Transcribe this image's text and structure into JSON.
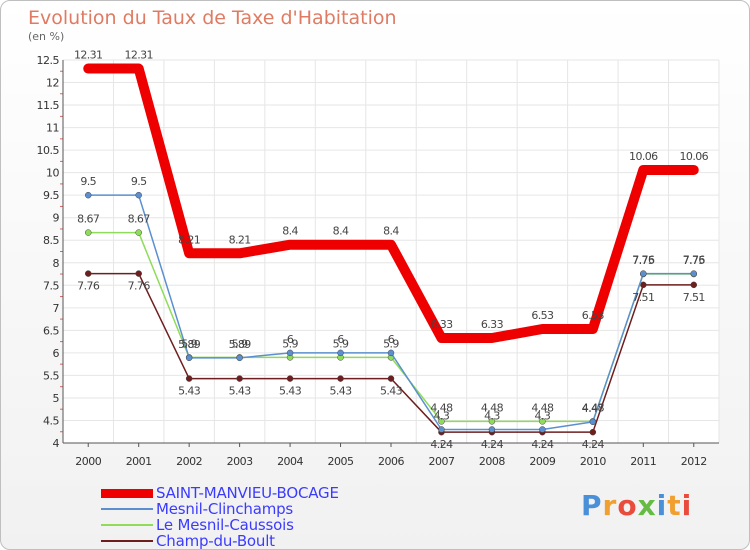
{
  "chart_data": {
    "type": "line",
    "title": "Evolution du Taux de Taxe d'Habitation",
    "ylabel": "(en %)",
    "xlabel": "",
    "ylim": [
      4,
      12.5
    ],
    "yticks": [
      "4",
      "4.5",
      "5",
      "5.5",
      "6",
      "6.5",
      "7",
      "7.5",
      "8",
      "8.5",
      "9",
      "9.5",
      "10",
      "10.5",
      "11",
      "11.5",
      "12",
      "12.5"
    ],
    "categories": [
      "2000",
      "2001",
      "2002",
      "2003",
      "2004",
      "2005",
      "2006",
      "2007",
      "2008",
      "2009",
      "2010",
      "2011",
      "2012"
    ],
    "series": [
      {
        "name": "SAINT-MANVIEU-BOCAGE",
        "color": "#ee0000",
        "values": [
          12.31,
          12.31,
          8.21,
          8.21,
          8.4,
          8.4,
          8.4,
          6.33,
          6.33,
          6.53,
          6.53,
          10.06,
          10.06
        ],
        "labels": [
          "12.31",
          "12.31",
          "8.21",
          "8.21",
          "8.4",
          "8.4",
          "8.4",
          "6.33",
          "6.33",
          "6.53",
          "6.53",
          "10.06",
          "10.06"
        ]
      },
      {
        "name": "Mesnil-Clinchamps",
        "color": "#5b8fd0",
        "values": [
          9.5,
          9.5,
          5.89,
          5.89,
          6,
          6,
          6,
          4.3,
          4.3,
          4.3,
          4.47,
          7.76,
          7.76
        ],
        "labels": [
          "9.5",
          "9.5",
          "5.89",
          "5.89",
          "6",
          "6",
          "6",
          "4.3",
          "4.3",
          "4.3",
          "4.47",
          "7.76",
          "7.76"
        ]
      },
      {
        "name": "Le Mesnil-Caussois",
        "color": "#8fdc5a",
        "values": [
          8.67,
          8.67,
          5.9,
          5.9,
          5.9,
          5.9,
          5.9,
          4.48,
          4.48,
          4.48,
          4.48,
          7.75,
          7.75
        ],
        "labels": [
          "8.67",
          "8.67",
          "5.9",
          "5.9",
          "5.9",
          "5.9",
          "5.9",
          "4.48",
          "4.48",
          "4.48",
          "4.48",
          "7.75",
          "7.75"
        ]
      },
      {
        "name": "Champ-du-Boult",
        "color": "#6e1e1e",
        "values": [
          7.76,
          7.76,
          5.43,
          5.43,
          5.43,
          5.43,
          5.43,
          4.24,
          4.24,
          4.24,
          4.24,
          7.51,
          7.51
        ],
        "labels": [
          "7.76",
          "7.76",
          "5.43",
          "5.43",
          "5.43",
          "5.43",
          "5.43",
          "4.24",
          "4.24",
          "4.24",
          "4.24",
          "7.51",
          "7.51"
        ]
      }
    ],
    "legend_position": "bottom-left"
  },
  "logo": {
    "text": "Proxiti",
    "letters": [
      "P",
      "r",
      "o",
      "x",
      "i",
      "t",
      "i"
    ],
    "colors": [
      "#4a90d9",
      "#f0a030",
      "#e94b3c",
      "#66bb44",
      "#4a90d9",
      "#f0a030",
      "#e94b3c"
    ]
  }
}
